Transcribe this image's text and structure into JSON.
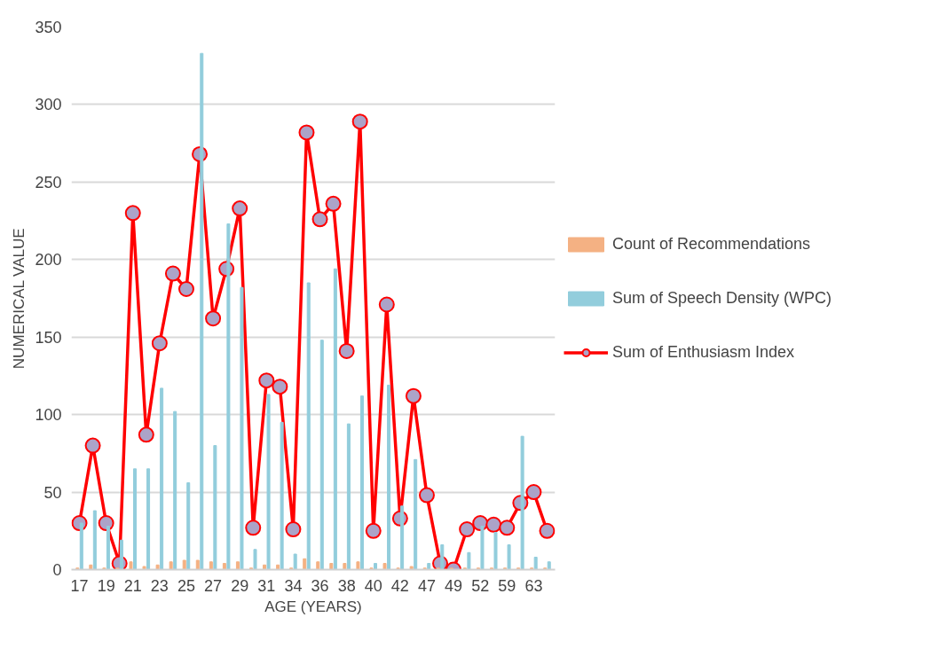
{
  "chart_data": {
    "type": "bar",
    "xlabel": "AGE (YEARS)",
    "ylabel": "NUMERICAL VALUE",
    "categories": [
      "17",
      null,
      "19",
      null,
      "21",
      null,
      "23",
      null,
      "25",
      null,
      "27",
      null,
      "29",
      null,
      "31",
      null,
      "34",
      null,
      "36",
      null,
      "38",
      null,
      "40",
      null,
      "42",
      null,
      "47",
      null,
      "49",
      null,
      "52",
      null,
      "59",
      null,
      "63",
      null
    ],
    "series": [
      {
        "name": "Count of Recommendations",
        "color": "#f4b183",
        "values": [
          1,
          3,
          1,
          1,
          5,
          2,
          3,
          5,
          6,
          6,
          5,
          4,
          5,
          1,
          3,
          3,
          1,
          7,
          5,
          4,
          4,
          5,
          1,
          4,
          1,
          2,
          1,
          1,
          1,
          1,
          1,
          1,
          1,
          1,
          1,
          1
        ]
      },
      {
        "name": "Sum of Speech Density (WPC)",
        "color": "#92cddc",
        "values": [
          30,
          38,
          28,
          19,
          65,
          65,
          117,
          102,
          56,
          333,
          80,
          223,
          182,
          13,
          113,
          95,
          10,
          185,
          148,
          194,
          94,
          112,
          4,
          119,
          41,
          71,
          4,
          16,
          0,
          11,
          28,
          24,
          16,
          86,
          8,
          5
        ]
      },
      {
        "name": "Sum of Enthusiasm Index",
        "type": "line",
        "color": "#ff0000",
        "marker": "circle",
        "values": [
          30,
          80,
          30,
          4,
          230,
          87,
          146,
          191,
          181,
          268,
          162,
          194,
          233,
          27,
          122,
          118,
          26,
          282,
          226,
          236,
          141,
          289,
          25,
          171,
          33,
          112,
          48,
          4,
          0,
          26,
          30,
          29,
          27,
          43,
          50,
          25
        ]
      }
    ],
    "ylim": [
      0,
      350
    ],
    "yticks": [
      0,
      50,
      100,
      150,
      200,
      250,
      300,
      350
    ],
    "grid": "y",
    "legend": "right"
  }
}
